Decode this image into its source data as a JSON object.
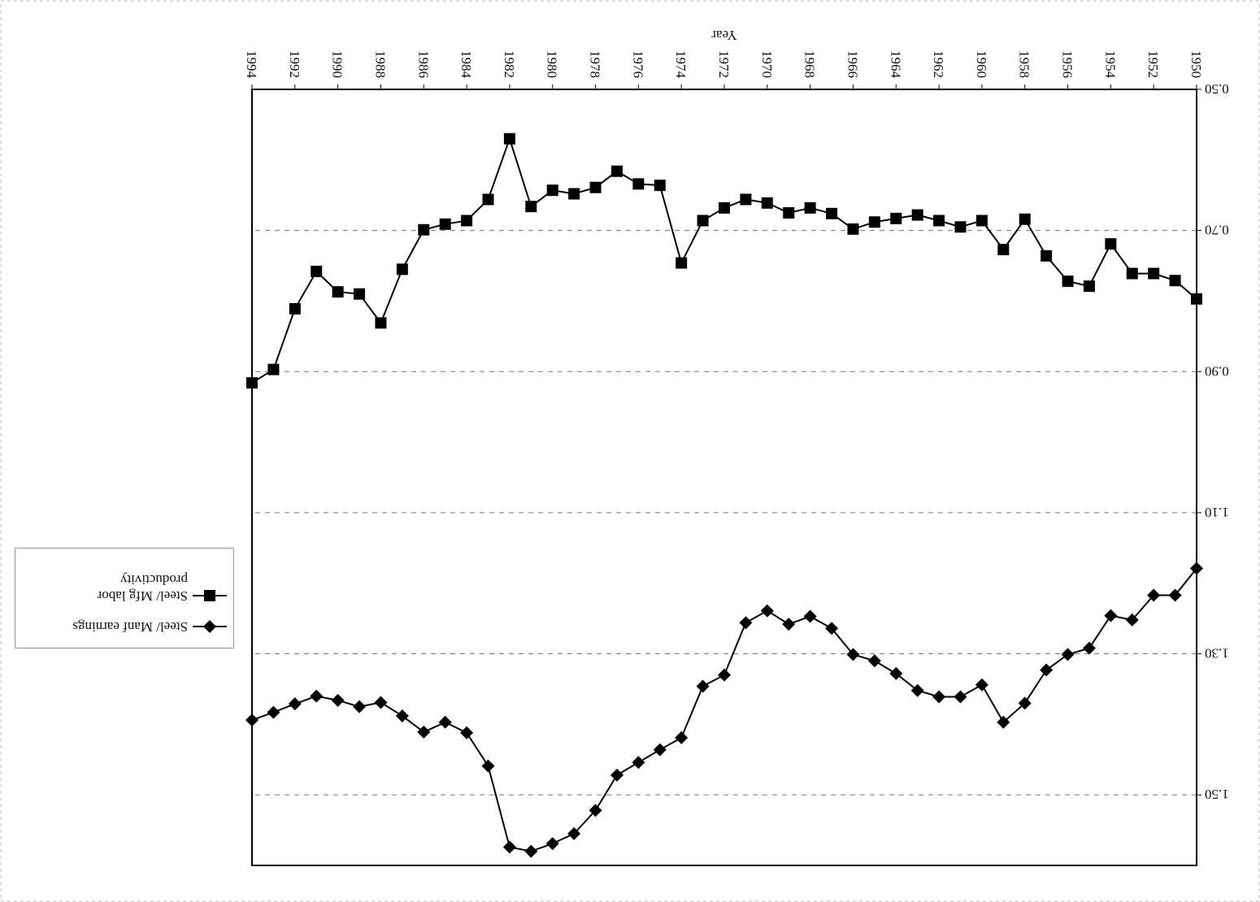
{
  "chart_data": {
    "type": "line",
    "x_label": "Year",
    "x": [
      1950,
      1951,
      1952,
      1953,
      1954,
      1955,
      1956,
      1957,
      1958,
      1959,
      1960,
      1961,
      1962,
      1963,
      1964,
      1965,
      1966,
      1967,
      1968,
      1969,
      1970,
      1971,
      1972,
      1973,
      1974,
      1975,
      1976,
      1977,
      1978,
      1979,
      1980,
      1981,
      1982,
      1983,
      1984,
      1985,
      1986,
      1987,
      1988,
      1989,
      1990,
      1991,
      1992,
      1993,
      1994
    ],
    "xlim": [
      1950,
      1994
    ],
    "xticks": [
      1950,
      1952,
      1954,
      1956,
      1958,
      1960,
      1962,
      1964,
      1966,
      1968,
      1970,
      1972,
      1974,
      1976,
      1978,
      1980,
      1982,
      1984,
      1986,
      1988,
      1990,
      1992,
      1994
    ],
    "ylim": [
      0.5,
      1.6
    ],
    "yticks": [
      {
        "value": 0.5,
        "label": "0.50"
      },
      {
        "value": 0.7,
        "label": "0.70"
      },
      {
        "value": 0.9,
        "label": "0.90"
      },
      {
        "value": 1.1,
        "label": "1.10"
      },
      {
        "value": 1.3,
        "label": "1.30"
      },
      {
        "value": 1.5,
        "label": "1.50"
      }
    ],
    "grid": true,
    "legend_position": "right",
    "series": [
      {
        "name": "Steel/ Manf earnings",
        "color": "#000000",
        "marker": "diamond",
        "values": [
          1.179,
          1.217,
          1.217,
          1.252,
          1.246,
          1.292,
          1.301,
          1.323,
          1.37,
          1.397,
          1.344,
          1.361,
          1.361,
          1.352,
          1.328,
          1.31,
          1.301,
          1.264,
          1.247,
          1.258,
          1.239,
          1.256,
          1.33,
          1.346,
          1.419,
          1.436,
          1.454,
          1.472,
          1.522,
          1.555,
          1.569,
          1.58,
          1.574,
          1.459,
          1.412,
          1.397,
          1.411,
          1.388,
          1.369,
          1.375,
          1.366,
          1.36,
          1.371,
          1.383,
          1.394
        ]
      },
      {
        "name": "Steel/ Mfg labor productivity",
        "color": "#000000",
        "marker": "square",
        "values": [
          0.797,
          0.771,
          0.761,
          0.761,
          0.719,
          0.779,
          0.772,
          0.736,
          0.684,
          0.727,
          0.686,
          0.695,
          0.686,
          0.678,
          0.683,
          0.688,
          0.698,
          0.676,
          0.668,
          0.675,
          0.661,
          0.656,
          0.668,
          0.686,
          0.746,
          0.636,
          0.634,
          0.616,
          0.639,
          0.648,
          0.643,
          0.666,
          0.57,
          0.656,
          0.686,
          0.691,
          0.699,
          0.755,
          0.831,
          0.79,
          0.787,
          0.758,
          0.811,
          0.897,
          0.916
        ]
      }
    ]
  }
}
